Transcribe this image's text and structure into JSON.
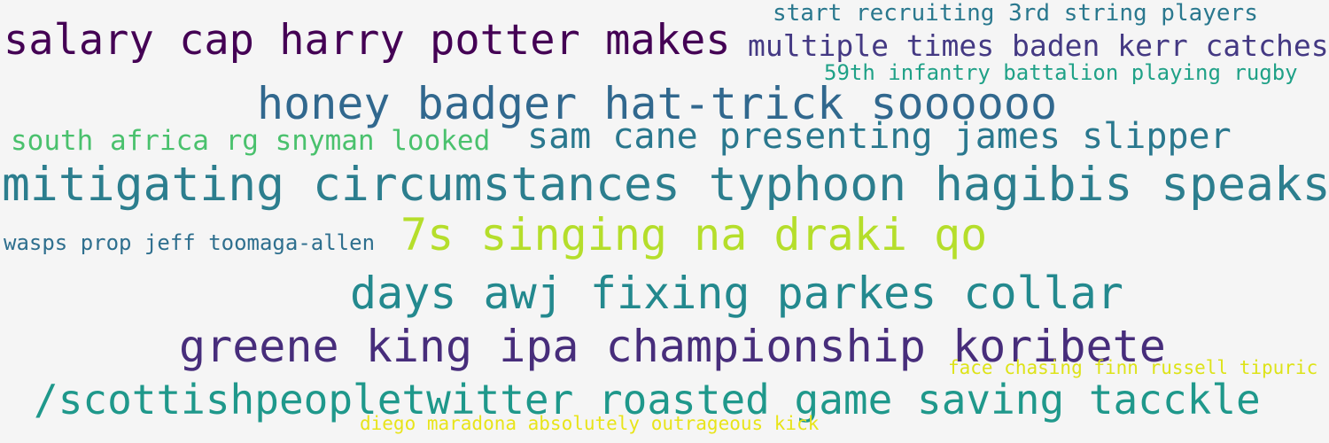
{
  "cloud": {
    "phrases": [
      {
        "text": "start recruiting 3rd string players",
        "color": "#2a788e"
      },
      {
        "text": "salary cap harry potter makes",
        "color": "#440154"
      },
      {
        "text": "multiple times baden kerr catches",
        "color": "#443983"
      },
      {
        "text": "59th infantry battalion playing rugby",
        "color": "#1fa187"
      },
      {
        "text": "honey badger hat-trick soooooo",
        "color": "#31688e"
      },
      {
        "text": "south africa rg snyman looked",
        "color": "#4ac16d"
      },
      {
        "text": "sam cane presenting james slipper",
        "color": "#2a788e"
      },
      {
        "text": "mitigating circumstances typhoon hagibis speaks",
        "color": "#2c7e8e"
      },
      {
        "text": "wasps prop jeff toomaga-allen",
        "color": "#2e6f8e"
      },
      {
        "text": "7s singing na draki qo",
        "color": "#b5de2b"
      },
      {
        "text": "days awj fixing parkes collar",
        "color": "#23898e"
      },
      {
        "text": "greene king ipa championship koribete",
        "color": "#472d7b"
      },
      {
        "text": "face chasing finn russell tipuric",
        "color": "#dde318"
      },
      {
        "text": "/scottishpeopletwitter roasted game saving tacckle",
        "color": "#1f988b"
      },
      {
        "text": "diego maradona absolutely outrageous kick",
        "color": "#e8e419"
      }
    ]
  }
}
